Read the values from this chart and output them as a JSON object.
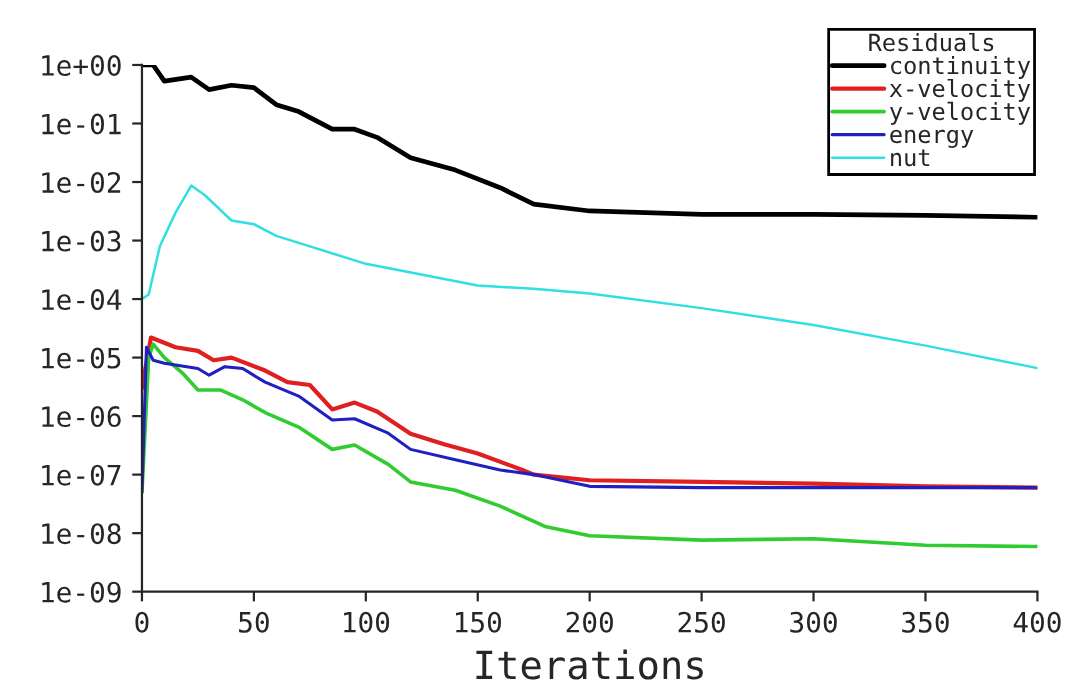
{
  "chart_data": {
    "type": "line",
    "xlabel": "Iterations",
    "legend_title": "Residuals",
    "legend": "top right",
    "grid": false,
    "log": "y",
    "xlim": [
      0,
      400
    ],
    "xticks": [
      0,
      50,
      100,
      150,
      200,
      250,
      300,
      350,
      400
    ],
    "ylim": [
      1e-09,
      1
    ],
    "yticks": [
      {
        "value": 1,
        "label": "1e+00"
      },
      {
        "value": 0.1,
        "label": "1e-01"
      },
      {
        "value": 0.01,
        "label": "1e-02"
      },
      {
        "value": 0.001,
        "label": "1e-03"
      },
      {
        "value": 0.0001,
        "label": "1e-04"
      },
      {
        "value": 1e-05,
        "label": "1e-05"
      },
      {
        "value": 1e-06,
        "label": "1e-06"
      },
      {
        "value": 1e-07,
        "label": "1e-07"
      },
      {
        "value": 1e-08,
        "label": "1e-08"
      },
      {
        "value": 1e-09,
        "label": "1e-09"
      }
    ],
    "series": [
      {
        "name": "continuity",
        "color": "#000000",
        "x": [
          0,
          5,
          10,
          22,
          30,
          40,
          50,
          60,
          70,
          85,
          95,
          105,
          120,
          140,
          160,
          175,
          200,
          250,
          300,
          350,
          400
        ],
        "values": [
          1,
          1,
          0.53,
          0.62,
          0.38,
          0.45,
          0.41,
          0.21,
          0.16,
          0.08,
          0.08,
          0.058,
          0.026,
          0.016,
          0.008,
          0.0042,
          0.0032,
          0.0028,
          0.0028,
          0.0027,
          0.0025
        ]
      },
      {
        "name": "x-velocity",
        "color": "#e02020",
        "x": [
          0,
          1,
          4,
          15,
          25,
          32,
          40,
          55,
          65,
          75,
          85,
          95,
          105,
          120,
          135,
          150,
          170,
          175,
          200,
          250,
          300,
          350,
          400
        ],
        "values": [
          3e-06,
          5e-06,
          2.2e-05,
          1.5e-05,
          1.3e-05,
          9e-06,
          1e-05,
          6e-06,
          3.8e-06,
          3.4e-06,
          1.3e-06,
          1.7e-06,
          1.2e-06,
          5e-07,
          3.3e-07,
          2.3e-07,
          1.2e-07,
          1e-07,
          8e-08,
          7.5e-08,
          7e-08,
          6.3e-08,
          6e-08
        ]
      },
      {
        "name": "y-velocity",
        "color": "#30cc30",
        "x": [
          0,
          3,
          5,
          10,
          18,
          25,
          35,
          45,
          55,
          70,
          85,
          95,
          110,
          120,
          140,
          160,
          180,
          200,
          250,
          300,
          350,
          400
        ],
        "values": [
          5e-08,
          1e-05,
          1.7e-05,
          1e-05,
          5.5e-06,
          2.8e-06,
          2.8e-06,
          1.9e-06,
          1.15e-06,
          6.5e-07,
          2.7e-07,
          3.2e-07,
          1.5e-07,
          7.5e-08,
          5.4e-08,
          2.9e-08,
          1.3e-08,
          9e-09,
          7.6e-09,
          8e-09,
          6.2e-09,
          5.9e-09
        ]
      },
      {
        "name": "energy",
        "color": "#2020c0",
        "x": [
          0,
          2,
          5,
          10,
          25,
          30,
          37,
          45,
          55,
          70,
          85,
          95,
          110,
          120,
          140,
          160,
          175,
          200,
          250,
          300,
          400
        ],
        "values": [
          5e-08,
          1.5e-05,
          9e-06,
          8e-06,
          6.5e-06,
          5e-06,
          7e-06,
          6.5e-06,
          3.8e-06,
          2.2e-06,
          8.6e-07,
          9e-07,
          5.1e-07,
          2.7e-07,
          1.8e-07,
          1.2e-07,
          1e-07,
          6.3e-08,
          6e-08,
          6e-08,
          6e-08
        ]
      },
      {
        "name": "nut",
        "color": "#30e0e0",
        "x": [
          0,
          3,
          8,
          15,
          22,
          28,
          40,
          50,
          60,
          100,
          150,
          175,
          200,
          250,
          300,
          350,
          400
        ],
        "values": [
          0.0001,
          0.00012,
          0.0008,
          0.003,
          0.0087,
          0.006,
          0.0022,
          0.0019,
          0.0012,
          0.0004,
          0.00017,
          0.00015,
          0.000125,
          7e-05,
          3.6e-05,
          1.6e-05,
          6.6e-06
        ]
      }
    ]
  }
}
